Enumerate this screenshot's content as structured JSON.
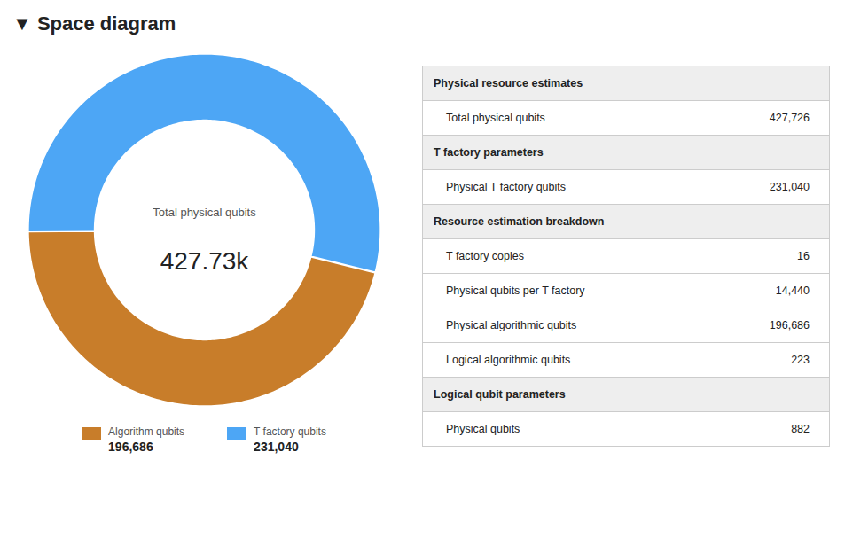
{
  "chart_data": {
    "type": "donut",
    "title": "▼ Space diagram",
    "categories": [
      "Algorithm qubits",
      "T factory qubits"
    ],
    "values": [
      196686,
      231040
    ],
    "value_labels": [
      "196,686",
      "231,040"
    ],
    "colors": [
      "#c87d2a",
      "#4da6f5"
    ],
    "legend": "bottom",
    "annotations": [
      "Total physical qubits",
      "427.73k"
    ],
    "table": [
      {
        "header": "Physical resource estimates",
        "rows": [
          {
            "label": "Total physical qubits",
            "value": "427,726"
          }
        ]
      },
      {
        "header": "T factory parameters",
        "rows": [
          {
            "label": "Physical T factory qubits",
            "value": "231,040"
          }
        ]
      },
      {
        "header": "Resource estimation breakdown",
        "rows": [
          {
            "label": "T factory copies",
            "value": "16"
          },
          {
            "label": "Physical qubits per T factory",
            "value": "14,440"
          },
          {
            "label": "Physical algorithmic qubits",
            "value": "196,686"
          },
          {
            "label": "Logical algorithmic qubits",
            "value": "223"
          }
        ]
      },
      {
        "header": "Logical qubit parameters",
        "rows": [
          {
            "label": "Physical qubits",
            "value": "882"
          }
        ]
      }
    ]
  }
}
